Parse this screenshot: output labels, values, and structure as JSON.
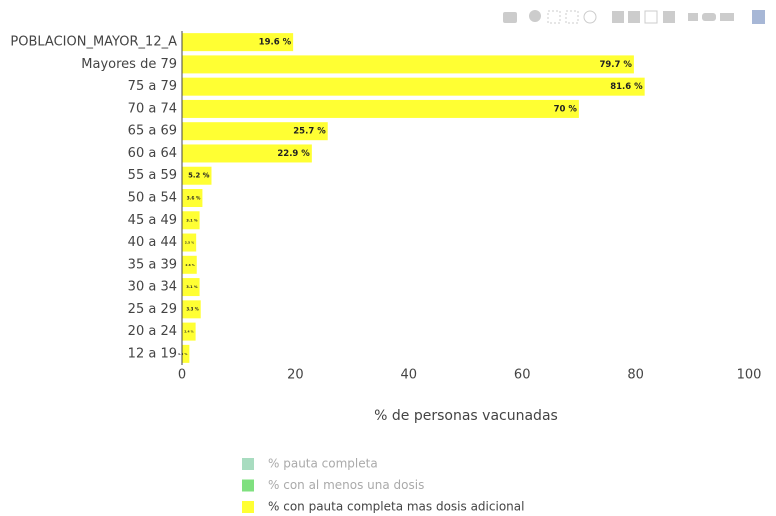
{
  "chart_data": {
    "type": "hbar",
    "x_label": "% de personas vacunadas",
    "categories": [
      "POBLACION_MAYOR_12_A",
      "Mayores de 79",
      "75 a 79",
      "70 a 74",
      "65 a 69",
      "60 a 64",
      "55 a 59",
      "50 a 54",
      "45 a 49",
      "40 a 44",
      "35 a 39",
      "30 a 34",
      "25 a 29",
      "20 a 24",
      "12 a 19"
    ],
    "series": [
      {
        "name": "% pauta completa",
        "color": "#a8dcc0",
        "visible": "legendonly"
      },
      {
        "name": "% con al menos una dosis",
        "color": "#7fe07f",
        "visible": "legendonly"
      },
      {
        "name": "% con pauta completa mas dosis adicional",
        "color": "#ffff33",
        "values": [
          19.6,
          79.7,
          81.6,
          70,
          25.7,
          22.9,
          5.2,
          3.6,
          3.1,
          2.5,
          2.6,
          3.1,
          3.3,
          2.4,
          1.3
        ],
        "value_labels": [
          "19.6  %",
          "79.7  %",
          "81.6  %",
          "70  %",
          "25.7  %",
          "22.9  %",
          "5.2  %",
          "3.6  %",
          "3.1  %",
          "2.5  %",
          "2.6  %",
          "3.1  %",
          "3.3  %",
          "2.4  %",
          "1.3  %"
        ]
      }
    ],
    "xlim": [
      0,
      100
    ],
    "xticks": [
      0,
      20,
      40,
      60,
      80,
      100
    ],
    "grid": false
  }
}
